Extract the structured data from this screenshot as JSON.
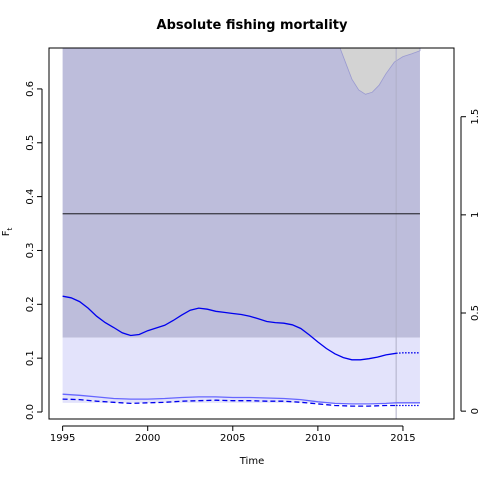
{
  "chart_data": {
    "type": "line",
    "title": "Absolute fishing mortality",
    "xlabel": "Time",
    "ylabel": "F",
    "ylabel_subscript": "t",
    "xlim": [
      1994.2,
      2018.0
    ],
    "ylim": [
      -0.013,
      0.676
    ],
    "y2lim": [
      -0.04,
      1.85
    ],
    "x_ticks": [
      1995,
      2000,
      2005,
      2010,
      2015
    ],
    "x_tick_labels": [
      "1995",
      "2000",
      "2005",
      "2010",
      "2015"
    ],
    "y_ticks": [
      0.0,
      0.1,
      0.2,
      0.3,
      0.4,
      0.5,
      0.6
    ],
    "y_tick_labels": [
      "0.0",
      "0.1",
      "0.2",
      "0.3",
      "0.4",
      "0.5",
      "0.6"
    ],
    "y2_ticks": [
      0,
      0.5,
      1,
      1.5
    ],
    "y2_tick_labels": [
      "0",
      "0.5",
      "1",
      "1.5"
    ],
    "x_start": 1995,
    "x_end": 2016,
    "last_data_year": 2014.6,
    "reference_line": 0.368,
    "shaded_regions": {
      "outer_band_color": "#bdbddb",
      "inner_band_color": "#e3e3fb",
      "inner_band_top": 0.138,
      "upper_ci_color": "#d3d3d3",
      "upper_ci": {
        "x": [
          2011.3,
          2011.7,
          2012.0,
          2012.4,
          2012.8,
          2013.2,
          2013.6,
          2014.0,
          2014.5,
          2015.0,
          2015.5,
          2016.0
        ],
        "values": [
          0.676,
          0.643,
          0.618,
          0.598,
          0.59,
          0.594,
          0.607,
          0.628,
          0.65,
          0.66,
          0.665,
          0.671
        ]
      }
    },
    "series": [
      {
        "name": "F estimate",
        "color": "#0000ee",
        "style": "solid",
        "x": [
          1995,
          1995.5,
          1996,
          1996.5,
          1997,
          1997.5,
          1998,
          1998.5,
          1999,
          1999.5,
          2000,
          2000.5,
          2001,
          2001.5,
          2002,
          2002.5,
          2003,
          2003.5,
          2004,
          2004.5,
          2005,
          2005.5,
          2006,
          2006.5,
          2007,
          2007.5,
          2008,
          2008.5,
          2009,
          2009.5,
          2010,
          2010.5,
          2011,
          2011.5,
          2012,
          2012.5,
          2013,
          2013.5,
          2014,
          2014.6
        ],
        "values": [
          0.215,
          0.212,
          0.205,
          0.193,
          0.178,
          0.166,
          0.157,
          0.147,
          0.142,
          0.144,
          0.151,
          0.156,
          0.161,
          0.17,
          0.18,
          0.189,
          0.193,
          0.191,
          0.187,
          0.185,
          0.183,
          0.181,
          0.178,
          0.173,
          0.168,
          0.166,
          0.165,
          0.162,
          0.155,
          0.143,
          0.13,
          0.118,
          0.108,
          0.101,
          0.097,
          0.097,
          0.099,
          0.102,
          0.106,
          0.109
        ]
      },
      {
        "name": "F forecast",
        "color": "#0000ee",
        "style": "dotted",
        "x": [
          2014.6,
          2015.0,
          2015.5,
          2016.0
        ],
        "values": [
          0.109,
          0.11,
          0.11,
          0.11
        ]
      },
      {
        "name": "F lower bound",
        "color": "#0000ee",
        "style": "dashed",
        "x": [
          1995,
          1996,
          1997,
          1998,
          1999,
          2000,
          2001,
          2002,
          2003,
          2004,
          2005,
          2006,
          2007,
          2008,
          2009,
          2010,
          2011,
          2012,
          2013,
          2014,
          2014.6
        ],
        "values": [
          0.024,
          0.023,
          0.02,
          0.018,
          0.016,
          0.017,
          0.018,
          0.02,
          0.021,
          0.022,
          0.021,
          0.021,
          0.02,
          0.02,
          0.018,
          0.015,
          0.012,
          0.011,
          0.011,
          0.012,
          0.012
        ]
      },
      {
        "name": "F lower bound forecast",
        "color": "#0000ee",
        "style": "dotted",
        "x": [
          2014.6,
          2015.0,
          2015.5,
          2016.0
        ],
        "values": [
          0.012,
          0.012,
          0.012,
          0.012
        ]
      },
      {
        "name": "F upper bound",
        "color": "#6666ff",
        "style": "solid",
        "x": [
          1995,
          1996,
          1997,
          1998,
          1999,
          2000,
          2001,
          2002,
          2003,
          2004,
          2005,
          2006,
          2007,
          2008,
          2009,
          2010,
          2011,
          2012,
          2013,
          2014,
          2014.6,
          2016
        ],
        "values": [
          0.033,
          0.031,
          0.028,
          0.025,
          0.024,
          0.024,
          0.025,
          0.027,
          0.028,
          0.028,
          0.027,
          0.027,
          0.026,
          0.025,
          0.023,
          0.019,
          0.016,
          0.015,
          0.015,
          0.016,
          0.017,
          0.017
        ]
      }
    ],
    "grid": false,
    "legend": "none"
  }
}
